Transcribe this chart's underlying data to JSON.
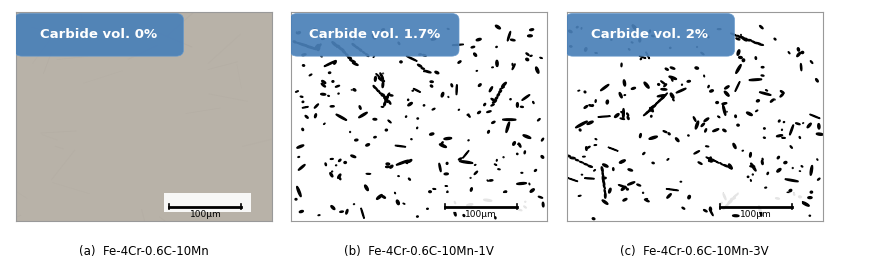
{
  "panels": [
    {
      "label": "(a)  Fe-4Cr-0.6C-10Mn",
      "carbide_text": "Carbide vol. 0%",
      "bg_color": "#b8b0a2",
      "is_gray": true,
      "scale_bar": "100μm"
    },
    {
      "label": "(b)  Fe-4Cr-0.6C-10Mn-1V",
      "carbide_text": "Carbide vol. 1.7%",
      "bg_color": "#ffffff",
      "is_gray": false,
      "scale_bar": "100μm"
    },
    {
      "label": "(c)  Fe-4Cr-0.6C-10Mn-3V",
      "carbide_text": "Carbide vol. 2%",
      "bg_color": "#ffffff",
      "is_gray": false,
      "scale_bar": "100μm"
    }
  ],
  "figure_bg": "#ffffff",
  "panel_border_color": "#999999",
  "badge_color": "#4a80b8",
  "badge_text_color": "#ffffff",
  "label_fontsize": 8.5,
  "badge_fontsize": 9.5,
  "scale_fontsize": 6.5
}
